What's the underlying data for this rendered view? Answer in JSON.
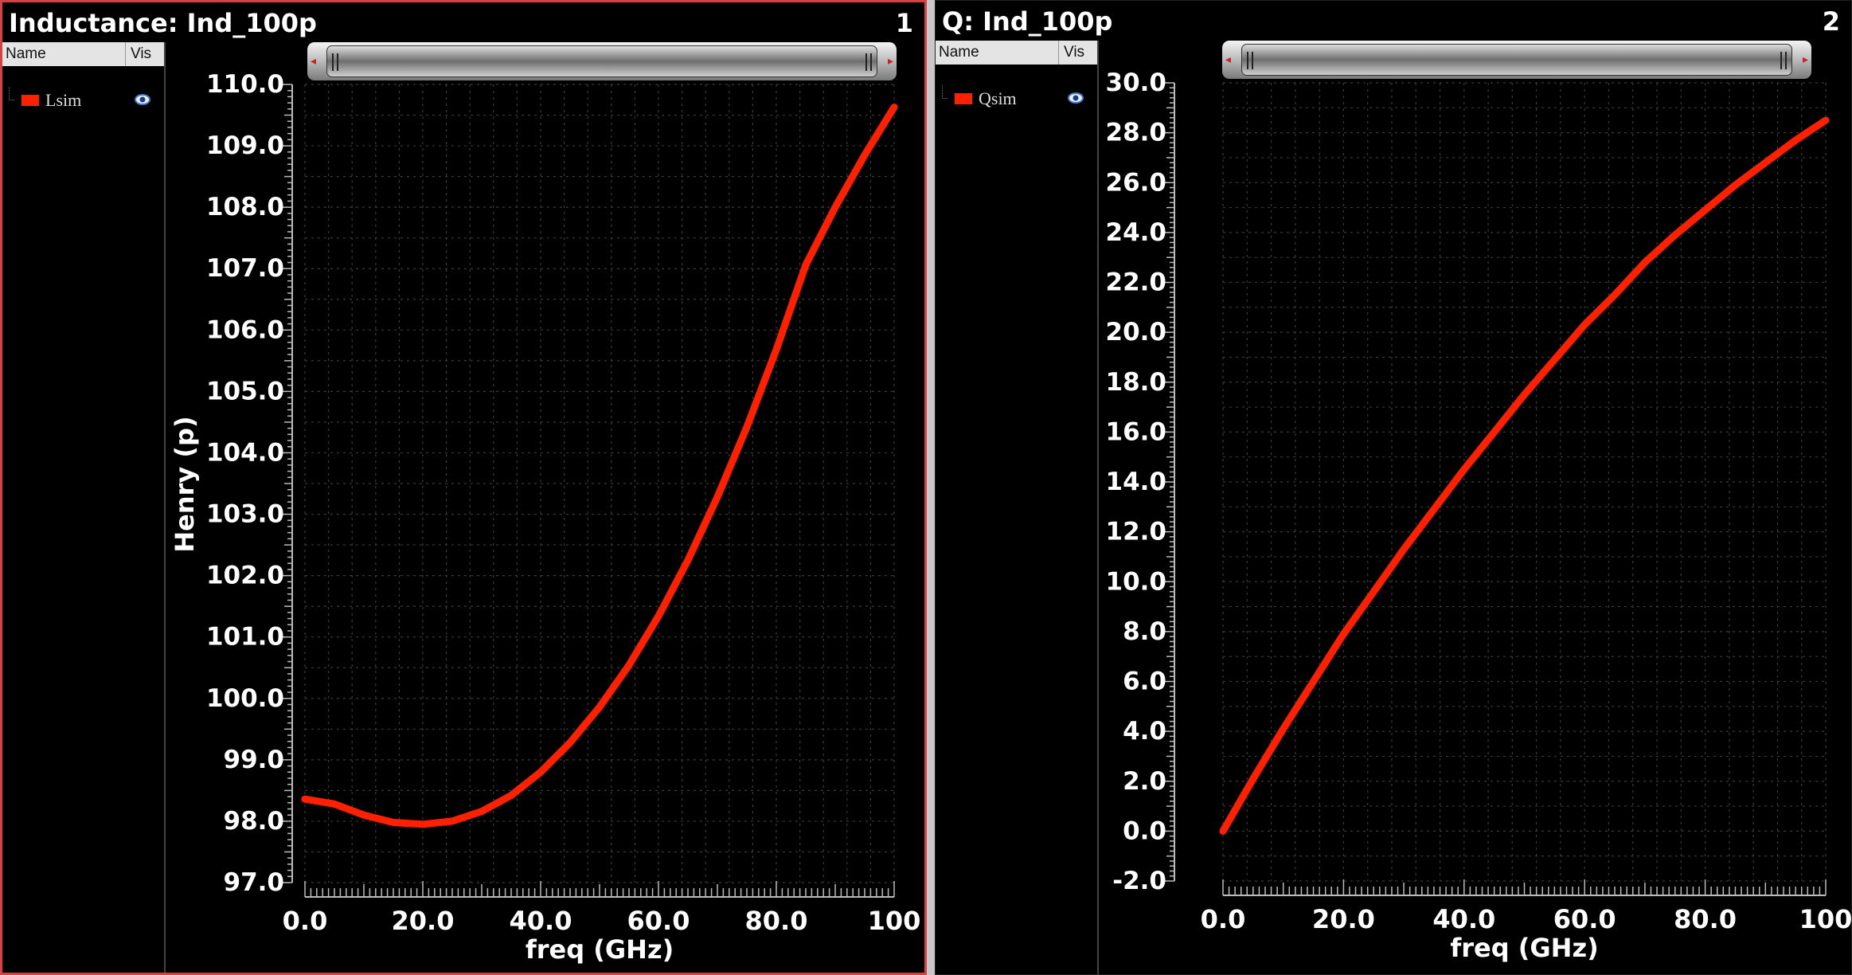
{
  "panels": [
    {
      "title": "Inductance: Ind_100p",
      "number": "1",
      "legend": {
        "header_name": "Name",
        "header_vis": "Vis",
        "items": [
          {
            "label": "Lsim",
            "color": "#ff2000",
            "visible_icon": "eye-icon"
          }
        ]
      }
    },
    {
      "title": "Q: Ind_100p",
      "number": "2",
      "legend": {
        "header_name": "Name",
        "header_vis": "Vis",
        "items": [
          {
            "label": "Qsim",
            "color": "#ff2000",
            "visible_icon": "eye-icon"
          }
        ]
      }
    }
  ],
  "chart_data": [
    {
      "type": "line",
      "xlabel": "freq (GHz)",
      "ylabel": "Henry (p)",
      "xlim": [
        0,
        100
      ],
      "ylim": [
        97,
        110
      ],
      "grid": true,
      "x_ticks": [
        "0.0",
        "20.0",
        "40.0",
        "60.0",
        "80.0",
        "100"
      ],
      "y_ticks": [
        "97.0",
        "98.0",
        "99.0",
        "100.0",
        "101.0",
        "102.0",
        "103.0",
        "104.0",
        "105.0",
        "106.0",
        "107.0",
        "108.0",
        "109.0",
        "110.0"
      ],
      "series": [
        {
          "name": "Lsim",
          "color": "#ff2000",
          "x": [
            0,
            5,
            10,
            15,
            20,
            25,
            30,
            35,
            40,
            45,
            50,
            55,
            60,
            65,
            70,
            75,
            80,
            85,
            90,
            95,
            100
          ],
          "y": [
            98.36,
            98.28,
            98.1,
            97.98,
            97.95,
            98.0,
            98.16,
            98.42,
            98.8,
            99.28,
            99.86,
            100.54,
            101.34,
            102.25,
            103.28,
            104.42,
            105.68,
            107.06,
            108.0,
            108.85,
            109.63
          ]
        }
      ]
    },
    {
      "type": "line",
      "xlabel": "freq (GHz)",
      "ylabel": "",
      "xlim": [
        0,
        100
      ],
      "ylim": [
        -2,
        30
      ],
      "grid": true,
      "x_ticks": [
        "0.0",
        "20.0",
        "40.0",
        "60.0",
        "80.0",
        "100"
      ],
      "y_ticks": [
        "-2.0",
        "0.0",
        "2.0",
        "4.0",
        "6.0",
        "8.0",
        "10.0",
        "12.0",
        "14.0",
        "16.0",
        "18.0",
        "20.0",
        "22.0",
        "24.0",
        "26.0",
        "28.0",
        "30.0"
      ],
      "series": [
        {
          "name": "Qsim",
          "color": "#ff2000",
          "x": [
            0,
            5,
            10,
            15,
            20,
            25,
            30,
            35,
            40,
            45,
            50,
            55,
            60,
            65,
            70,
            75,
            80,
            85,
            90,
            95,
            100
          ],
          "y": [
            0.0,
            2.1,
            4.1,
            6.0,
            7.9,
            9.6,
            11.3,
            12.9,
            14.5,
            16.0,
            17.5,
            18.9,
            20.3,
            21.5,
            22.8,
            23.9,
            24.9,
            25.9,
            26.8,
            27.7,
            28.5
          ]
        }
      ]
    }
  ]
}
